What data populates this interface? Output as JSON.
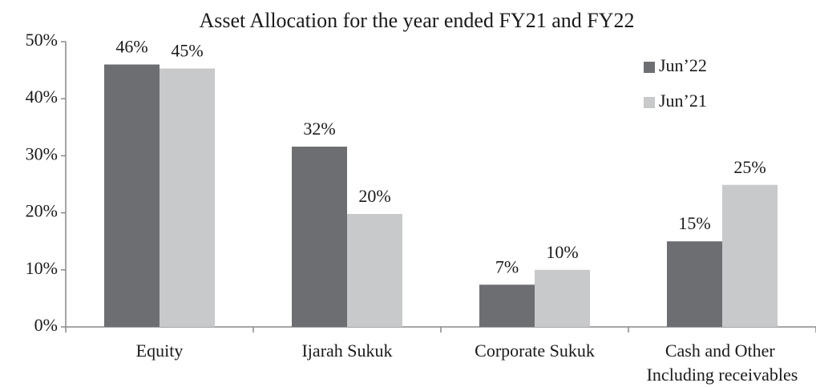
{
  "chart_data": {
    "type": "bar",
    "title": "Asset Allocation for the year ended FY21 and FY22",
    "categories": [
      "Equity",
      "Ijarah Sukuk",
      "Corporate Sukuk",
      "Cash and Other\nIncluding receivables"
    ],
    "series": [
      {
        "name": "Jun’22",
        "color": "#6d6e71",
        "values": [
          46,
          31.6,
          7.4,
          15
        ],
        "value_labels": [
          "46%",
          "32%",
          "7%",
          "15%"
        ]
      },
      {
        "name": "Jun’21",
        "color": "#c8c9cb",
        "values": [
          45.3,
          19.8,
          10,
          24.9
        ],
        "value_labels": [
          "45%",
          "20%",
          "10%",
          "25%"
        ]
      }
    ],
    "ylim": [
      0,
      50
    ],
    "yticks": [
      {
        "value": 0,
        "label": "0%"
      },
      {
        "value": 10,
        "label": "10%"
      },
      {
        "value": 20,
        "label": "20%"
      },
      {
        "value": 30,
        "label": "30%"
      },
      {
        "value": 40,
        "label": "40%"
      },
      {
        "value": 50,
        "label": "50%"
      }
    ],
    "legend": "top-right",
    "grid": false
  }
}
